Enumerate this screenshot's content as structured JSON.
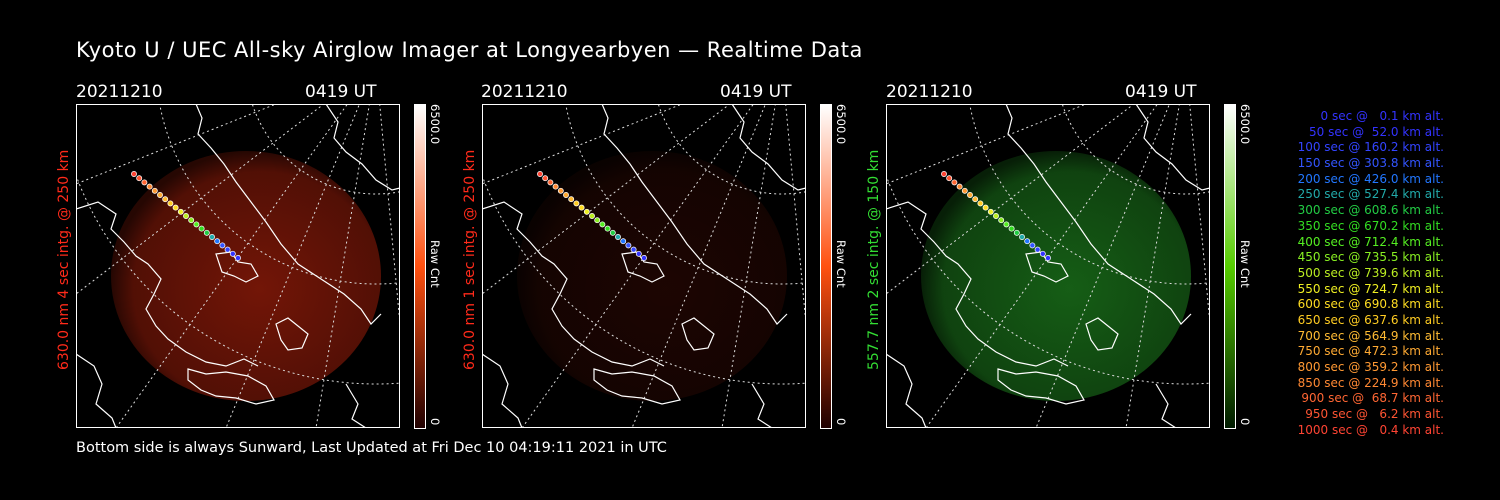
{
  "title": "Kyoto U / UEC All-sky Airglow Imager at Longyearbyen — Realtime Data",
  "footer": "Bottom side is always Sunward, Last Updated at Fri Dec 10 04:19:11 2021 in UTC",
  "panels": [
    {
      "date": "20211210",
      "time": "0419 UT",
      "ylabel": "630.0 nm 4 sec intg. @ 250 km",
      "ylabel_color": "#ff2a1a",
      "cbar_max": "6500.0",
      "cbar_min": "0",
      "cbar_unit": "Raw Cnt",
      "tint": "#ff3010",
      "cbar_gradient": [
        "#200000",
        "#ff5010",
        "#ffffff"
      ]
    },
    {
      "date": "20211210",
      "time": "0419 UT",
      "ylabel": "630.0 nm 1 sec intg. @ 250 km",
      "ylabel_color": "#ff2a1a",
      "cbar_max": "6500.0",
      "cbar_min": "0",
      "cbar_unit": "Raw Cnt",
      "tint": "#ff3010",
      "cbar_gradient": [
        "#200000",
        "#ff5010",
        "#ffffff"
      ]
    },
    {
      "date": "20211210",
      "time": "0419 UT",
      "ylabel": "557.7 nm 2 sec intg. @ 150 km",
      "ylabel_color": "#33dd33",
      "cbar_max": "6500.0",
      "cbar_min": "0",
      "cbar_unit": "Raw Cnt",
      "tint": "#30d030",
      "cbar_gradient": [
        "#001a00",
        "#55cc00",
        "#ffffff"
      ]
    }
  ],
  "legend": [
    {
      "text": "0 sec @   0.1 km alt.",
      "color": "#3333ff"
    },
    {
      "text": "50 sec @  52.0 km alt.",
      "color": "#3333ff"
    },
    {
      "text": "100 sec @ 160.2 km alt.",
      "color": "#3344ff"
    },
    {
      "text": "150 sec @ 303.8 km alt.",
      "color": "#3355ff"
    },
    {
      "text": "200 sec @ 426.0 km alt.",
      "color": "#2277ff"
    },
    {
      "text": "250 sec @ 527.4 km alt.",
      "color": "#22aaaa"
    },
    {
      "text": "300 sec @ 608.6 km alt.",
      "color": "#22cc44"
    },
    {
      "text": "350 sec @ 670.2 km alt.",
      "color": "#33dd22"
    },
    {
      "text": "400 sec @ 712.4 km alt.",
      "color": "#55ee22"
    },
    {
      "text": "450 sec @ 735.5 km alt.",
      "color": "#88ee22"
    },
    {
      "text": "500 sec @ 739.6 km alt.",
      "color": "#bbee22"
    },
    {
      "text": "550 sec @ 724.7 km alt.",
      "color": "#eeee22"
    },
    {
      "text": "600 sec @ 690.8 km alt.",
      "color": "#ffdd22"
    },
    {
      "text": "650 sec @ 637.6 km alt.",
      "color": "#ffcc22"
    },
    {
      "text": "700 sec @ 564.9 km alt.",
      "color": "#ffbb33"
    },
    {
      "text": "750 sec @ 472.3 km alt.",
      "color": "#ffaa33"
    },
    {
      "text": "800 sec @ 359.2 km alt.",
      "color": "#ff9933"
    },
    {
      "text": "850 sec @ 224.9 km alt.",
      "color": "#ff8833"
    },
    {
      "text": "900 sec @  68.7 km alt.",
      "color": "#ff6633"
    },
    {
      "text": "950 sec @   6.2 km alt.",
      "color": "#ff5533"
    },
    {
      "text": "1000 sec @   0.4 km alt.",
      "color": "#ff4433"
    }
  ]
}
